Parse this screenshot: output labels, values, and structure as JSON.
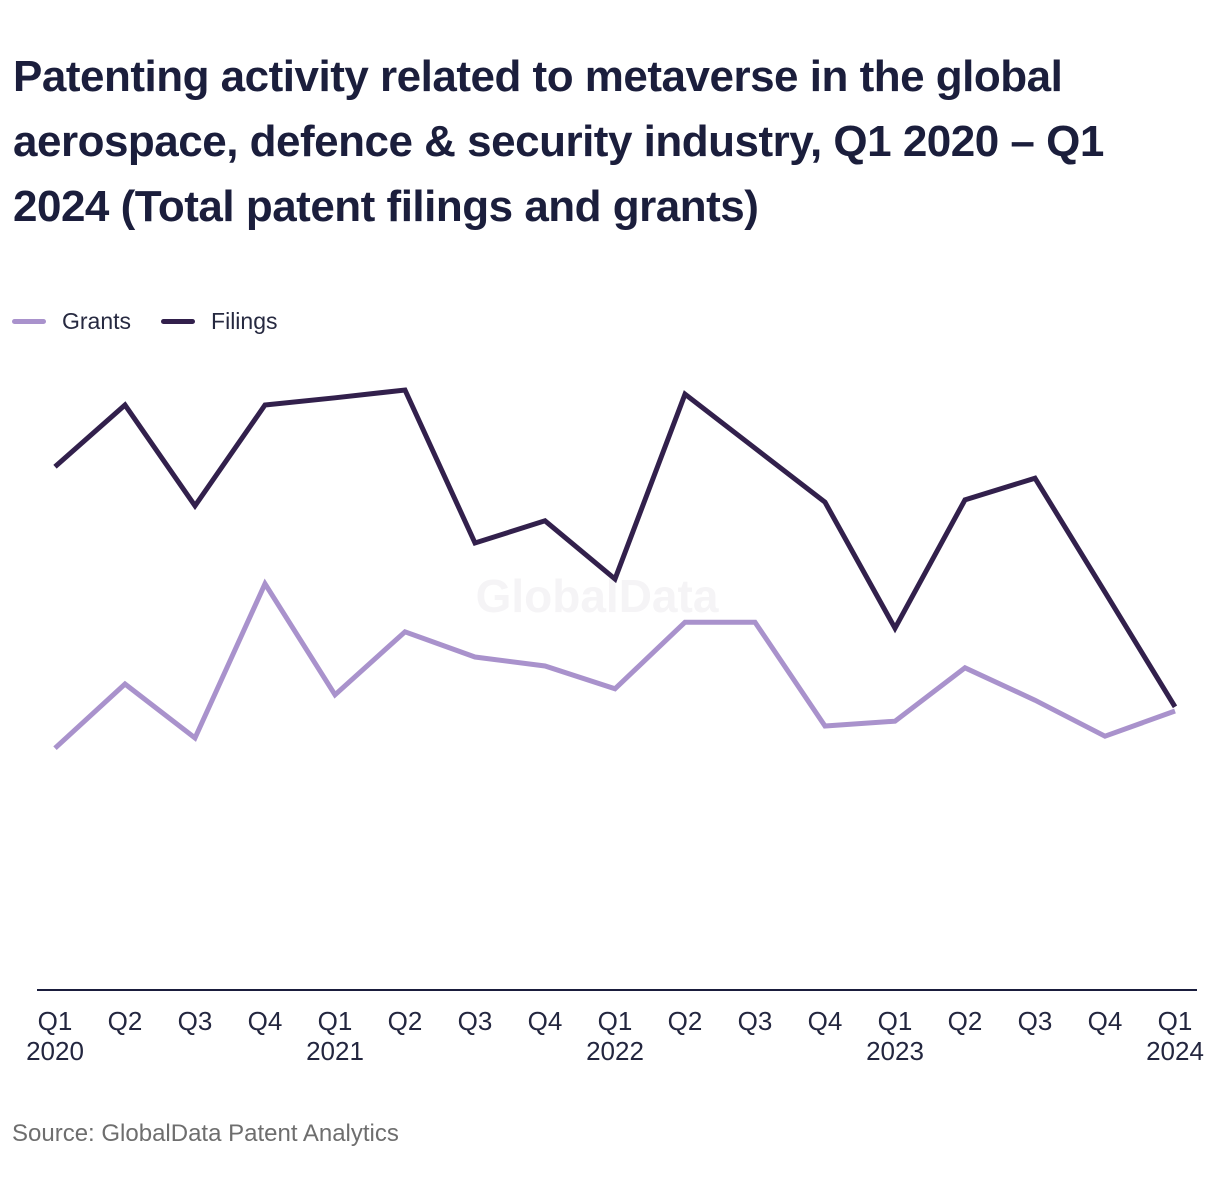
{
  "title": "Patenting activity related to metaverse in the global aerospace, defence & security industry, Q1 2020 – Q1 2024 (Total patent filings and grants)",
  "watermark": "GlobalData",
  "source": "Source: GlobalData Patent Analytics",
  "colors": {
    "background": "#FFFFFF",
    "title": "#1B1E3C",
    "axis": "#1A1D3D",
    "tick_label": "#23263F",
    "source": "#6E6E6E",
    "watermark": "#F5F4F6",
    "grants_line": "#A992CC",
    "filings_line": "#32204C"
  },
  "chart_data": {
    "type": "line",
    "title": "Patenting activity related to metaverse in the global aerospace, defence & security industry, Q1 2020 – Q1 2024 (Total patent filings and grants)",
    "xlabel": "",
    "ylabel": "",
    "y_axis_note": "y-axis unlabeled in source; values are a relative index (peak filings = 100) estimated from the plot",
    "ylim": [
      0,
      105
    ],
    "grid": false,
    "legend_position": "top-left",
    "categories": [
      "Q1",
      "Q2",
      "Q3",
      "Q4",
      "Q1",
      "Q2",
      "Q3",
      "Q4",
      "Q1",
      "Q2",
      "Q3",
      "Q4",
      "Q1",
      "Q2",
      "Q3",
      "Q4",
      "Q1"
    ],
    "year_labels": [
      "2020",
      "",
      "",
      "",
      "2021",
      "",
      "",
      "",
      "2022",
      "",
      "",
      "",
      "2023",
      "",
      "",
      "",
      "2024"
    ],
    "series": [
      {
        "name": "Grants",
        "color": "#A992CC",
        "values": [
          40.3,
          51.0,
          42.0,
          67.7,
          49.2,
          59.7,
          55.5,
          54.0,
          50.2,
          61.3,
          61.3,
          44.0,
          44.8,
          53.7,
          48.3,
          42.3,
          46.5
        ]
      },
      {
        "name": "Filings",
        "color": "#32204C",
        "values": [
          87.2,
          97.5,
          80.7,
          97.5,
          98.7,
          100.0,
          74.5,
          78.2,
          68.5,
          99.3,
          90.3,
          81.3,
          60.3,
          81.7,
          85.3,
          66.3,
          47.2
        ]
      }
    ]
  }
}
